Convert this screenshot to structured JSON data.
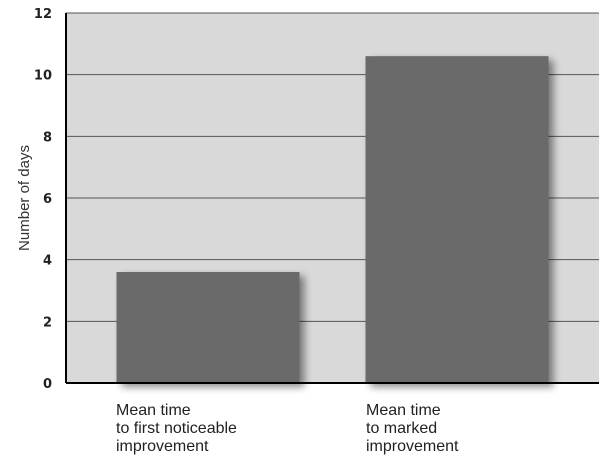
{
  "chart_data": {
    "type": "bar",
    "title": "",
    "xlabel": "",
    "ylabel": "Number of days",
    "ylim": [
      0,
      12
    ],
    "yticks": [
      0,
      2,
      4,
      6,
      8,
      10,
      12
    ],
    "grid": true,
    "categories": [
      [
        "Mean time",
        "to first noticeable",
        "improvement"
      ],
      [
        "Mean time",
        "to marked",
        "improvement"
      ]
    ],
    "values": [
      3.6,
      10.6
    ],
    "colors": {
      "plot_background": "#d9d9d9",
      "bar": "#6b6b6b",
      "gridline": "#555555"
    }
  }
}
